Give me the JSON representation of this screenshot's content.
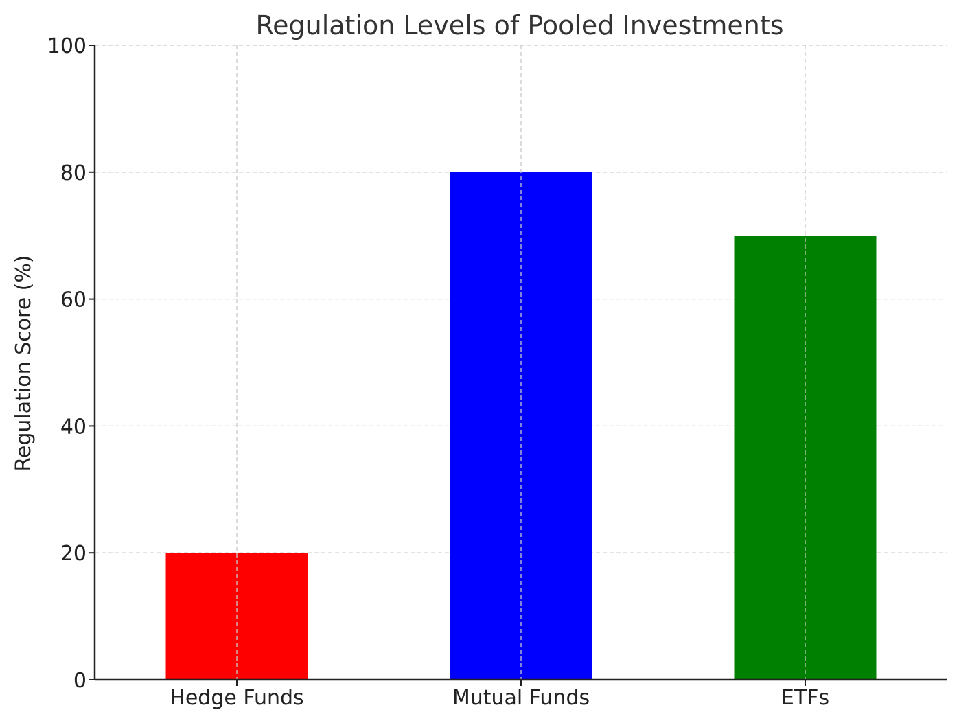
{
  "chart_data": {
    "type": "bar",
    "title": "Regulation Levels of Pooled Investments",
    "xlabel": "",
    "ylabel": "Regulation Score (%)",
    "categories": [
      "Hedge Funds",
      "Mutual Funds",
      "ETFs"
    ],
    "values": [
      20,
      80,
      70
    ],
    "colors": [
      "#ff0000",
      "#0000ff",
      "#008000"
    ],
    "ylim": [
      0,
      100
    ],
    "yticks": [
      0,
      20,
      40,
      60,
      80,
      100
    ],
    "grid": true,
    "legend": "none"
  }
}
